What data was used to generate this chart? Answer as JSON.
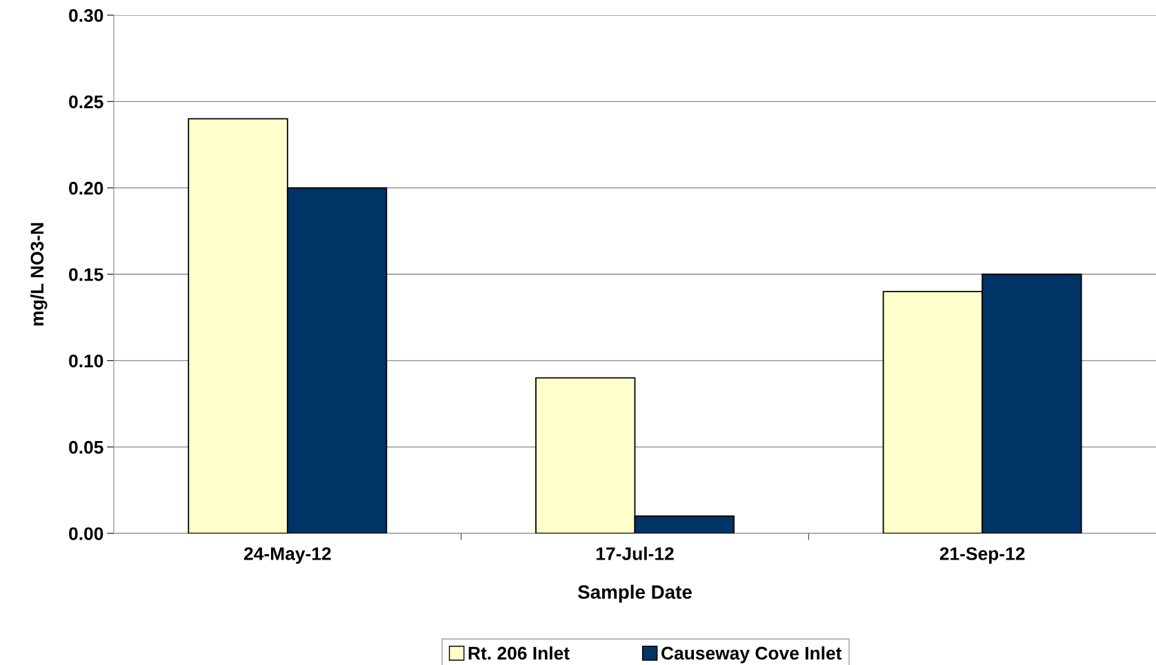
{
  "chart_data": {
    "type": "bar",
    "xlabel": "Sample Date",
    "ylabel": "mg/L NO3-N",
    "categories": [
      "24-May-12",
      "17-Jul-12",
      "21-Sep-12"
    ],
    "series": [
      {
        "name": "Rt. 206 Inlet",
        "color": "#ffffcc",
        "values": [
          0.24,
          0.09,
          0.14
        ]
      },
      {
        "name": "Causeway Cove Inlet",
        "color": "#003366",
        "values": [
          0.2,
          0.01,
          0.15
        ]
      }
    ],
    "ylim": [
      0,
      0.3
    ],
    "yticks": [
      {
        "value": 0,
        "label": "0.00"
      },
      {
        "value": 0.05,
        "label": "0.05"
      },
      {
        "value": 0.1,
        "label": "0.10"
      },
      {
        "value": 0.15,
        "label": "0.15"
      },
      {
        "value": 0.2,
        "label": "0.20"
      },
      {
        "value": 0.25,
        "label": "0.25"
      },
      {
        "value": 0.3,
        "label": "0.30"
      }
    ],
    "grid": "y",
    "legend": "bottom"
  }
}
